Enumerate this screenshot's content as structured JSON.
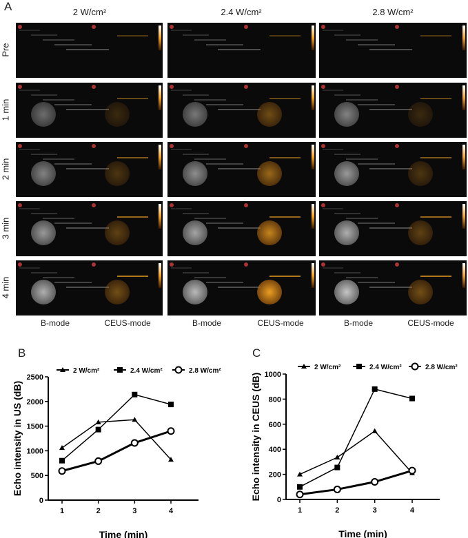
{
  "panel_a": {
    "label": "A",
    "columns": [
      "2 W/cm²",
      "2.4 W/cm²",
      "2.8 W/cm²"
    ],
    "rows": [
      "Pre",
      "1 min",
      "2 min",
      "3 min",
      "4 min"
    ],
    "modes": [
      "B-mode",
      "CEUS-mode"
    ],
    "ceus_color": "#f5a623"
  },
  "chart_data": [
    {
      "panel": "B",
      "type": "line",
      "xlabel": "Time (min)",
      "ylabel": "Echo intensity in US (dB)",
      "x": [
        1,
        2,
        3,
        4
      ],
      "ylim": [
        0,
        2500
      ],
      "yticks": [
        0,
        500,
        1000,
        1500,
        2000,
        2500
      ],
      "legend": "top",
      "series": [
        {
          "name": "2 W/cm²",
          "marker": "triangle",
          "values": [
            1060,
            1580,
            1630,
            820
          ]
        },
        {
          "name": "2.4 W/cm²",
          "marker": "square",
          "values": [
            800,
            1430,
            2140,
            1940
          ]
        },
        {
          "name": "2.8 W/cm²",
          "marker": "circle",
          "values": [
            590,
            790,
            1160,
            1400
          ]
        }
      ]
    },
    {
      "panel": "C",
      "type": "line",
      "xlabel": "Time (min)",
      "ylabel": "Echo intensity in CEUS (dB)",
      "x": [
        1,
        2,
        3,
        4
      ],
      "ylim": [
        0,
        1000
      ],
      "yticks": [
        0,
        200,
        400,
        600,
        800,
        1000
      ],
      "legend": "top",
      "series": [
        {
          "name": "2 W/cm²",
          "marker": "triangle",
          "values": [
            200,
            335,
            545,
            210
          ]
        },
        {
          "name": "2.4 W/cm²",
          "marker": "square",
          "values": [
            100,
            255,
            880,
            805
          ]
        },
        {
          "name": "2.8 W/cm²",
          "marker": "circle",
          "values": [
            40,
            80,
            140,
            230
          ]
        }
      ]
    }
  ]
}
